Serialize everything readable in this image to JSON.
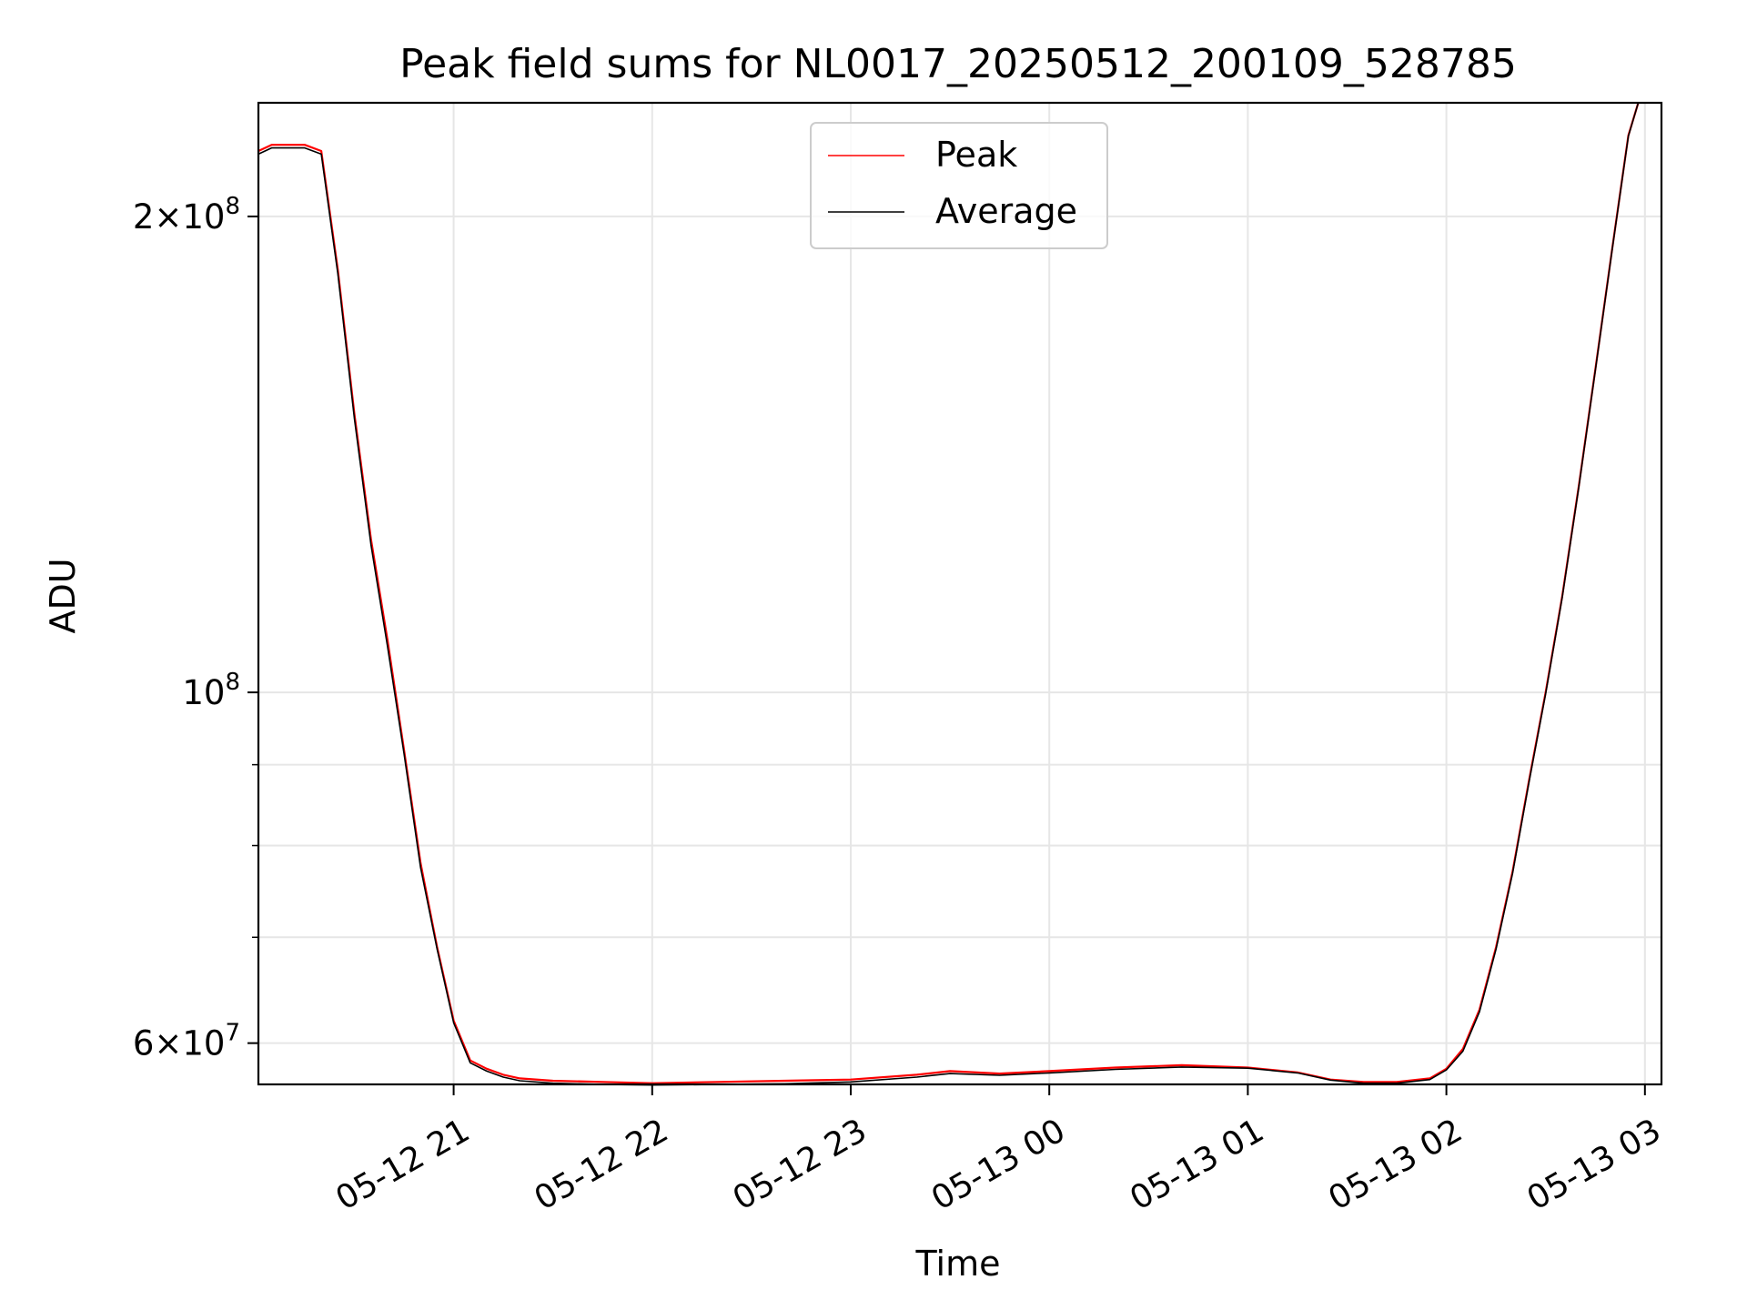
{
  "chart_data": {
    "type": "line",
    "title": "Peak field sums for NL0017_20250512_200109_528785",
    "xlabel": "Time",
    "ylabel": "ADU",
    "yscale": "log",
    "ylim": [
      56500000,
      236000000
    ],
    "xlim": [
      "2025-05-12 20:01",
      "2025-05-13 03:05"
    ],
    "grid": true,
    "legend_position": "upper-center",
    "xticks": [
      {
        "time": "2025-05-12 21:00",
        "label": "05-12 21"
      },
      {
        "time": "2025-05-12 22:00",
        "label": "05-12 22"
      },
      {
        "time": "2025-05-12 23:00",
        "label": "05-12 23"
      },
      {
        "time": "2025-05-13 00:00",
        "label": "05-13 00"
      },
      {
        "time": "2025-05-13 01:00",
        "label": "05-13 01"
      },
      {
        "time": "2025-05-13 02:00",
        "label": "05-13 02"
      },
      {
        "time": "2025-05-13 03:00",
        "label": "05-13 03"
      }
    ],
    "yticks_major": [
      {
        "value": 60000000,
        "base": "6×10",
        "exp": "7"
      },
      {
        "value": 100000000,
        "base": "10",
        "exp": "8"
      },
      {
        "value": 200000000,
        "base": "2×10",
        "exp": "8"
      }
    ],
    "yticks_minor": [
      70000000,
      80000000,
      90000000
    ],
    "series": [
      {
        "name": "Peak",
        "color": "#ff0000",
        "x": [
          "2025-05-12 20:01",
          "2025-05-12 20:05",
          "2025-05-12 20:10",
          "2025-05-12 20:15",
          "2025-05-12 20:20",
          "2025-05-12 20:25",
          "2025-05-12 20:30",
          "2025-05-12 20:35",
          "2025-05-12 20:40",
          "2025-05-12 20:45",
          "2025-05-12 20:50",
          "2025-05-12 20:55",
          "2025-05-12 21:00",
          "2025-05-12 21:05",
          "2025-05-12 21:10",
          "2025-05-12 21:15",
          "2025-05-12 21:20",
          "2025-05-12 21:30",
          "2025-05-12 21:45",
          "2025-05-12 22:00",
          "2025-05-12 22:20",
          "2025-05-12 22:40",
          "2025-05-12 23:00",
          "2025-05-12 23:20",
          "2025-05-12 23:30",
          "2025-05-12 23:45",
          "2025-05-13 00:00",
          "2025-05-13 00:20",
          "2025-05-13 00:40",
          "2025-05-13 01:00",
          "2025-05-13 01:15",
          "2025-05-13 01:25",
          "2025-05-13 01:35",
          "2025-05-13 01:45",
          "2025-05-13 01:55",
          "2025-05-13 02:00",
          "2025-05-13 02:05",
          "2025-05-13 02:10",
          "2025-05-13 02:15",
          "2025-05-13 02:20",
          "2025-05-13 02:25",
          "2025-05-13 02:30",
          "2025-05-13 02:35",
          "2025-05-13 02:40",
          "2025-05-13 02:45",
          "2025-05-13 02:50",
          "2025-05-13 02:55",
          "2025-05-13 02:58"
        ],
        "y": [
          220000000,
          222000000,
          222000000,
          222000000,
          220000000,
          185000000,
          150000000,
          125000000,
          108000000,
          92000000,
          78000000,
          69000000,
          62000000,
          58500000,
          57800000,
          57300000,
          57000000,
          56800000,
          56700000,
          56600000,
          56700000,
          56800000,
          56900000,
          57300000,
          57600000,
          57400000,
          57600000,
          57900000,
          58100000,
          57900000,
          57500000,
          56900000,
          56700000,
          56700000,
          57000000,
          57800000,
          59500000,
          63000000,
          69000000,
          77000000,
          88000000,
          100000000,
          115000000,
          135000000,
          160000000,
          190000000,
          225000000,
          236000000
        ]
      },
      {
        "name": "Average",
        "color": "#000000",
        "x": [
          "2025-05-12 20:01",
          "2025-05-12 20:05",
          "2025-05-12 20:10",
          "2025-05-12 20:15",
          "2025-05-12 20:20",
          "2025-05-12 20:25",
          "2025-05-12 20:30",
          "2025-05-12 20:35",
          "2025-05-12 20:40",
          "2025-05-12 20:45",
          "2025-05-12 20:50",
          "2025-05-12 20:55",
          "2025-05-12 21:00",
          "2025-05-12 21:05",
          "2025-05-12 21:10",
          "2025-05-12 21:15",
          "2025-05-12 21:20",
          "2025-05-12 21:30",
          "2025-05-12 21:45",
          "2025-05-12 22:00",
          "2025-05-12 22:20",
          "2025-05-12 22:40",
          "2025-05-12 23:00",
          "2025-05-12 23:20",
          "2025-05-12 23:30",
          "2025-05-12 23:45",
          "2025-05-13 00:00",
          "2025-05-13 00:20",
          "2025-05-13 00:40",
          "2025-05-13 01:00",
          "2025-05-13 01:15",
          "2025-05-13 01:25",
          "2025-05-13 01:35",
          "2025-05-13 01:45",
          "2025-05-13 01:55",
          "2025-05-13 02:00",
          "2025-05-13 02:05",
          "2025-05-13 02:10",
          "2025-05-13 02:15",
          "2025-05-13 02:20",
          "2025-05-13 02:25",
          "2025-05-13 02:30",
          "2025-05-13 02:35",
          "2025-05-13 02:40",
          "2025-05-13 02:45",
          "2025-05-13 02:50",
          "2025-05-13 02:55",
          "2025-05-13 02:58"
        ],
        "y": [
          219000000,
          221000000,
          221000000,
          221000000,
          219000000,
          184000000,
          149000000,
          124000000,
          107000000,
          91500000,
          77500000,
          68800000,
          61800000,
          58300000,
          57600000,
          57100000,
          56800000,
          56600000,
          56500000,
          56450000,
          56500000,
          56550000,
          56700000,
          57100000,
          57400000,
          57250000,
          57450000,
          57750000,
          57950000,
          57850000,
          57450000,
          56850000,
          56600000,
          56600000,
          56900000,
          57700000,
          59300000,
          62800000,
          68800000,
          76800000,
          87800000,
          99800000,
          114800000,
          134800000,
          159800000,
          189800000,
          224800000,
          236000000
        ]
      }
    ]
  }
}
